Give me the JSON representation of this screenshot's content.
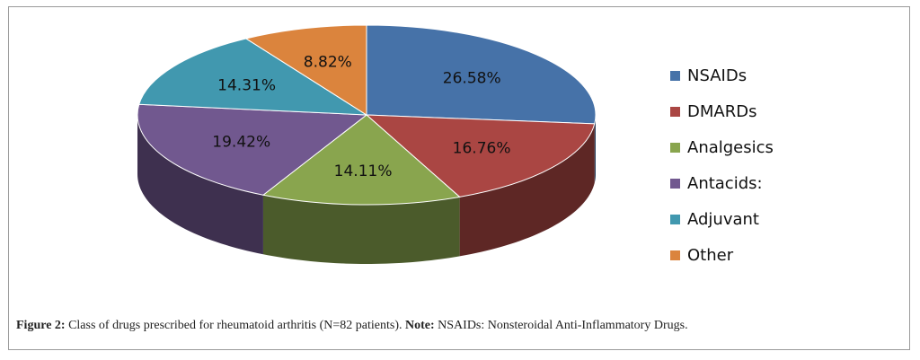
{
  "chart_data": {
    "type": "pie",
    "title": "",
    "categories": [
      "NSAIDs",
      "DMARDs",
      "Analgesics",
      "Antacids:",
      "Adjuvant",
      "Other"
    ],
    "values": [
      26.58,
      16.76,
      14.11,
      19.42,
      14.31,
      8.82
    ],
    "labels": [
      "26.58%",
      "16.76%",
      "14.11%",
      "19.42%",
      "14.31%",
      "8.82%"
    ],
    "colors": [
      "#4672A8",
      "#AA4643",
      "#89A54E",
      "#71588F",
      "#4198AF",
      "#DB843D"
    ],
    "legend_position": "right",
    "style": "3d"
  },
  "caption": {
    "figure_label": "Figure 2:",
    "text": "Class of drugs prescribed for rheumatoid arthritis (N=82 patients).",
    "note_label": "Note:",
    "note_text": "NSAIDs: Nonsteroidal Anti-Inflammatory Drugs."
  }
}
